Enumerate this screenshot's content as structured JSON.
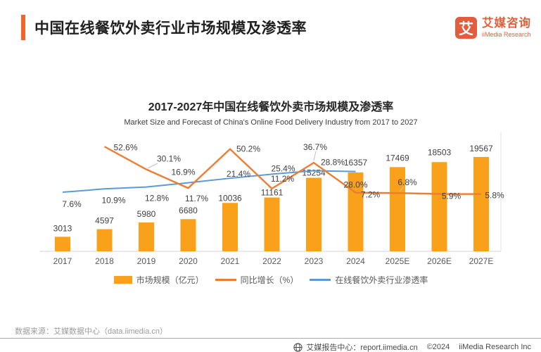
{
  "header": {
    "title": "中国在线餐饮外卖行业市场规模及渗透率",
    "logo": {
      "badge_char": "艾",
      "brand_cn": "艾媒咨询",
      "brand_en": "iiMedia Research"
    }
  },
  "chart_data": {
    "type": "bar+line combo",
    "title": "2017-2027年中国在线餐饮外卖市场规模及渗透率",
    "subtitle": "Market Size and Forecast of China's Online Food Delivery Industry from 2017 to 2027",
    "categories": [
      "2017",
      "2018",
      "2019",
      "2020",
      "2021",
      "2022",
      "2023",
      "2024",
      "2025E",
      "2026E",
      "2027E"
    ],
    "series": [
      {
        "name": "市场规模（亿元）",
        "type": "bar",
        "color": "#F9A11B",
        "values": [
          3013,
          4597,
          5980,
          6680,
          10036,
          11161,
          15254,
          16357,
          17469,
          18503,
          19567
        ]
      },
      {
        "name": "同比增长（%）",
        "type": "line",
        "color": "#ED7D31",
        "unit": "%",
        "values": [
          null,
          52.6,
          30.1,
          11.7,
          50.2,
          11.2,
          36.7,
          7.2,
          6.8,
          5.9,
          5.8
        ]
      },
      {
        "name": "在线餐饮外卖行业渗透率",
        "type": "line",
        "color": "#5B9BD5",
        "unit": "%",
        "values": [
          7.6,
          10.9,
          12.8,
          16.9,
          21.4,
          25.4,
          28.8,
          28.0,
          null,
          null,
          null
        ]
      }
    ],
    "legend_position": "bottom",
    "grid": false,
    "value_axis_visible": false
  },
  "source_note": "数据来源：艾媒数据中心（data.iimedia.cn）",
  "footer": {
    "report_center": "艾媒报告中心：report.iimedia.cn",
    "copyright": "©2024",
    "company": "iiMedia Research Inc"
  }
}
